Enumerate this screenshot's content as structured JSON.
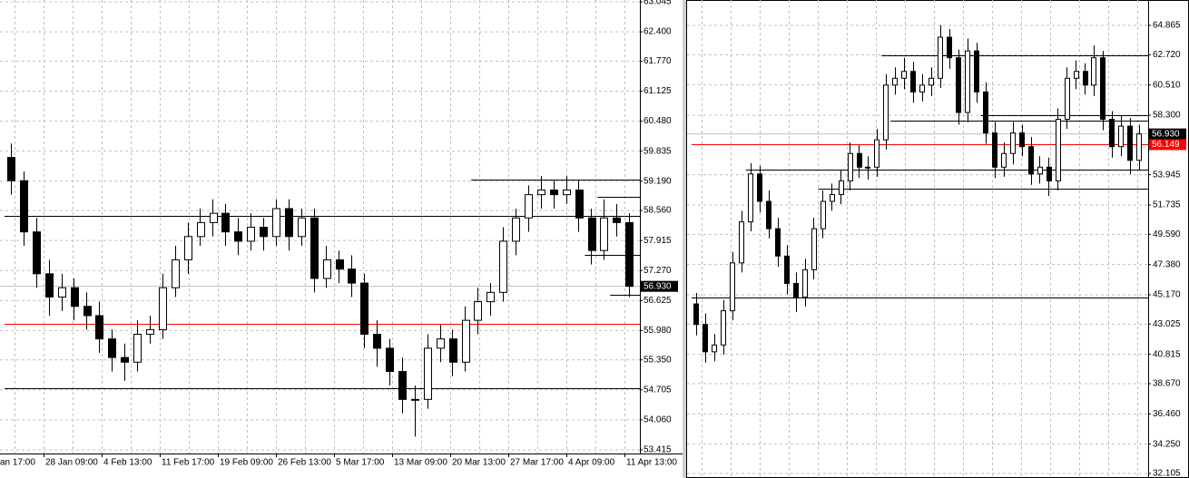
{
  "chart_data": [
    {
      "type": "candlestick",
      "open": [
        59.7,
        59.2,
        58.1,
        57.2,
        56.7,
        56.9,
        56.5,
        56.3,
        55.8,
        55.4,
        55.3,
        55.9,
        56.0,
        56.9,
        57.5,
        58.0,
        58.3,
        58.5,
        58.1,
        57.9,
        58.2,
        58.0,
        58.6,
        58.0,
        58.4,
        57.1,
        57.5,
        57.3,
        57.0,
        55.9,
        55.6,
        55.1,
        54.5,
        54.5,
        55.6,
        55.8,
        55.3,
        56.2,
        56.6,
        56.8,
        57.9,
        58.4,
        58.9,
        59.0,
        58.9,
        59.0,
        58.4,
        57.7,
        58.4,
        58.3
      ],
      "high": [
        60.0,
        59.4,
        58.4,
        57.5,
        57.2,
        57.1,
        56.8,
        56.6,
        56.0,
        55.7,
        56.2,
        56.3,
        57.2,
        57.8,
        58.3,
        58.6,
        58.8,
        58.7,
        58.4,
        58.5,
        58.4,
        58.8,
        58.8,
        58.6,
        58.6,
        57.8,
        57.7,
        57.6,
        57.2,
        56.2,
        55.8,
        55.4,
        54.8,
        55.9,
        56.1,
        56.0,
        56.5,
        56.9,
        57.0,
        58.2,
        58.6,
        59.1,
        59.3,
        59.2,
        59.3,
        59.2,
        58.6,
        58.8,
        58.7,
        58.5
      ],
      "low": [
        58.9,
        57.8,
        56.9,
        56.3,
        56.4,
        56.2,
        56.0,
        55.5,
        55.1,
        54.9,
        55.1,
        55.7,
        55.8,
        56.7,
        57.2,
        57.8,
        58.0,
        57.8,
        57.6,
        57.7,
        57.7,
        57.8,
        57.7,
        57.8,
        56.8,
        56.9,
        57.0,
        56.7,
        55.6,
        55.2,
        54.8,
        54.2,
        53.7,
        54.3,
        55.3,
        55.0,
        55.1,
        55.9,
        56.3,
        56.6,
        57.6,
        58.1,
        58.6,
        58.6,
        58.7,
        58.1,
        57.4,
        57.5,
        58.0,
        56.7
      ],
      "close": [
        59.2,
        58.1,
        57.2,
        56.7,
        56.9,
        56.5,
        56.3,
        55.8,
        55.4,
        55.3,
        55.9,
        56.0,
        56.9,
        57.5,
        58.0,
        58.3,
        58.5,
        58.1,
        57.9,
        58.2,
        58.0,
        58.6,
        58.0,
        58.4,
        57.1,
        57.5,
        57.3,
        57.0,
        55.9,
        55.6,
        55.1,
        54.5,
        54.5,
        55.6,
        55.8,
        55.3,
        56.2,
        56.6,
        56.8,
        57.9,
        58.4,
        58.9,
        59.0,
        58.9,
        59.0,
        58.4,
        57.7,
        58.4,
        58.3,
        56.93
      ],
      "ylim": [
        53.415,
        63.045
      ],
      "yticks": [
        63.045,
        {
          "value": 62.4,
          "label": "62.400"
        },
        {
          "value": 61.77,
          "label": "61.770"
        },
        61.125,
        {
          "value": 60.48,
          "label": "60.480"
        },
        59.835,
        {
          "value": 59.19,
          "label": "59.190"
        },
        {
          "value": 58.56,
          "label": "58.560"
        },
        57.915,
        {
          "value": 57.27,
          "label": "57.270"
        },
        56.625,
        {
          "value": 55.98,
          "label": "55.980"
        },
        {
          "value": 55.35,
          "label": "55.350"
        },
        54.705,
        {
          "value": 54.06,
          "label": "54.060"
        },
        53.415
      ],
      "xlabels": [
        "an 17:00",
        "28 Jan 09:00",
        "4 Feb 13:00",
        "11 Feb 17:00",
        "19 Feb 09:00",
        "26 Feb 13:00",
        "5 Mar 17:00",
        "13 Mar 09:00",
        "20 Mar 13:00",
        "27 Mar 17:00",
        "4 Apr 09:00",
        "11 Apr 13:00"
      ],
      "levels": [
        {
          "value": 58.45,
          "start": 0,
          "color": "#000000"
        },
        {
          "value": 56.13,
          "start": 0,
          "color": "#ff0000"
        },
        {
          "value": 54.75,
          "start": 0,
          "color": "#000000"
        },
        {
          "value": 59.22,
          "start": 37,
          "color": "#000000"
        },
        {
          "value": 58.85,
          "start": 47,
          "color": "#000000"
        },
        {
          "value": 57.6,
          "start": 46,
          "color": "#000000"
        },
        {
          "value": 56.75,
          "start": 48,
          "color": "#000000"
        }
      ],
      "price_labels": [
        {
          "value": 56.93,
          "label": "56.930",
          "color": "#000000"
        }
      ],
      "grid": true
    },
    {
      "type": "candlestick",
      "open": [
        44.5,
        43.0,
        41.0,
        41.5,
        44.0,
        47.5,
        50.5,
        54.0,
        52.0,
        50.0,
        48.0,
        46.0,
        45.0,
        47.0,
        50.0,
        52.0,
        52.5,
        53.5,
        55.5,
        54.5,
        54.5,
        56.5,
        60.5,
        61.0,
        61.5,
        60.0,
        60.5,
        61.0,
        64.0,
        62.5,
        58.5,
        63.0,
        60.0,
        57.0,
        54.5,
        55.5,
        57.0,
        56.0,
        54.0,
        54.5,
        53.5,
        58.0,
        61.0,
        61.5,
        60.5,
        62.5,
        58.0,
        56.0,
        57.5,
        55.0
      ],
      "high": [
        45.3,
        43.8,
        42.3,
        44.8,
        48.3,
        51.3,
        54.8,
        54.6,
        52.8,
        50.8,
        48.8,
        46.8,
        47.8,
        50.8,
        52.8,
        53.3,
        54.3,
        56.3,
        56.1,
        55.3,
        57.3,
        61.3,
        61.8,
        62.5,
        62.2,
        61.3,
        61.8,
        64.9,
        64.6,
        63.1,
        63.9,
        63.6,
        60.7,
        57.8,
        56.3,
        57.8,
        57.6,
        56.7,
        55.3,
        55.2,
        58.8,
        61.8,
        62.3,
        62.1,
        63.4,
        63.0,
        58.6,
        58.3,
        58.1,
        57.6
      ],
      "low": [
        42.2,
        40.2,
        40.3,
        40.8,
        43.3,
        46.8,
        49.8,
        51.2,
        49.3,
        47.2,
        45.2,
        43.9,
        44.3,
        46.3,
        49.3,
        51.3,
        51.8,
        52.8,
        53.7,
        53.6,
        53.8,
        55.8,
        59.8,
        60.2,
        59.2,
        59.3,
        59.7,
        60.3,
        61.7,
        57.6,
        57.8,
        59.2,
        56.2,
        53.7,
        53.8,
        54.7,
        55.3,
        53.2,
        53.3,
        52.4,
        52.8,
        57.3,
        60.2,
        59.8,
        59.7,
        57.2,
        55.2,
        55.3,
        54.0,
        54.3
      ],
      "close": [
        43.0,
        41.0,
        41.5,
        44.0,
        47.5,
        50.5,
        54.0,
        52.0,
        50.0,
        48.0,
        46.0,
        45.0,
        47.0,
        50.0,
        52.0,
        52.5,
        53.5,
        55.5,
        54.5,
        54.5,
        56.5,
        60.5,
        61.0,
        61.5,
        60.0,
        60.5,
        61.0,
        64.0,
        62.5,
        58.5,
        63.0,
        60.0,
        57.0,
        54.5,
        55.5,
        57.0,
        56.0,
        54.0,
        54.5,
        53.5,
        58.0,
        61.0,
        61.5,
        60.5,
        62.5,
        58.0,
        56.0,
        57.5,
        55.0,
        56.93
      ],
      "ylim": [
        32.105,
        64.865
      ],
      "yticks": [
        64.865,
        {
          "value": 62.72,
          "label": "62.720"
        },
        {
          "value": 60.51,
          "label": "60.510"
        },
        {
          "value": 58.3,
          "label": "58.300"
        },
        53.945,
        51.735,
        {
          "value": 49.59,
          "label": "49.590"
        },
        {
          "value": 47.38,
          "label": "47.380"
        },
        {
          "value": 45.17,
          "label": "45.170"
        },
        43.025,
        40.815,
        {
          "value": 38.67,
          "label": "38.670"
        },
        {
          "value": 36.46,
          "label": "36.460"
        },
        {
          "value": 34.25,
          "label": "34.250"
        },
        32.105
      ],
      "levels": [
        {
          "value": 62.7,
          "start": 21,
          "color": "#000000"
        },
        {
          "value": 58.3,
          "start": 32,
          "color": "#000000"
        },
        {
          "value": 57.9,
          "start": 22,
          "color": "#000000"
        },
        {
          "value": 56.149,
          "start": 0,
          "color": "#ff0000"
        },
        {
          "value": 54.3,
          "start": 6,
          "color": "#000000"
        },
        {
          "value": 52.9,
          "start": 14,
          "color": "#000000"
        },
        {
          "value": 45.0,
          "start": 0,
          "color": "#000000"
        }
      ],
      "price_labels": [
        {
          "value": 56.93,
          "label": "56.930",
          "color": "#000000"
        },
        {
          "value": 56.149,
          "label": "56.149",
          "color": "#ff0000"
        }
      ],
      "grid": true
    }
  ]
}
